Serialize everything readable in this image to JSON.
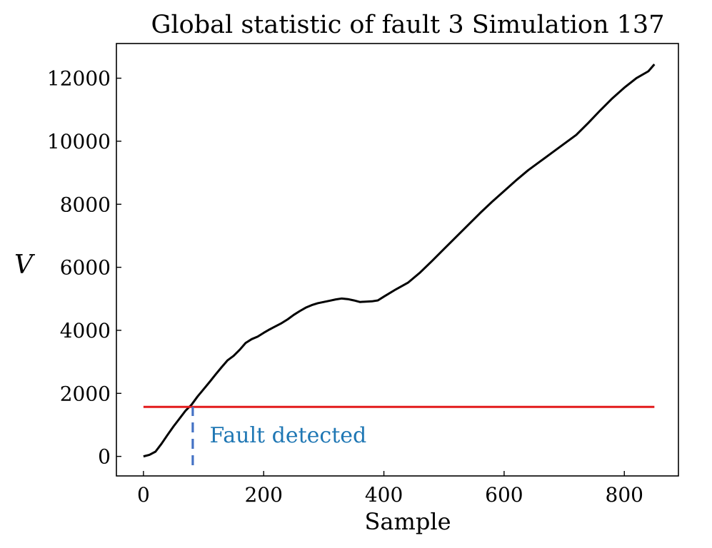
{
  "chart_data": {
    "type": "line",
    "title": "Global statistic of fault 3 Simulation 137",
    "xlabel": "Sample",
    "ylabel": "V",
    "xlim": [
      -45,
      890
    ],
    "ylim": [
      -620,
      13100
    ],
    "xticks": [
      0,
      200,
      400,
      600,
      800
    ],
    "yticks": [
      0,
      2000,
      4000,
      6000,
      8000,
      10000,
      12000
    ],
    "grid": false,
    "series": [
      {
        "color": "#000000",
        "x": [
          0,
          10,
          20,
          30,
          40,
          50,
          60,
          70,
          80,
          90,
          100,
          110,
          120,
          130,
          140,
          150,
          160,
          170,
          180,
          190,
          200,
          210,
          220,
          230,
          240,
          250,
          260,
          270,
          280,
          290,
          300,
          310,
          320,
          330,
          340,
          350,
          360,
          370,
          380,
          390,
          400,
          420,
          440,
          460,
          480,
          500,
          520,
          540,
          560,
          580,
          600,
          620,
          640,
          660,
          680,
          700,
          720,
          740,
          760,
          780,
          800,
          820,
          840,
          850
        ],
        "y": [
          0,
          50,
          150,
          400,
          680,
          950,
          1200,
          1450,
          1640,
          1900,
          2130,
          2360,
          2600,
          2830,
          3050,
          3190,
          3380,
          3600,
          3720,
          3800,
          3920,
          4030,
          4130,
          4230,
          4350,
          4490,
          4610,
          4720,
          4800,
          4860,
          4900,
          4940,
          4980,
          5010,
          4990,
          4950,
          4900,
          4910,
          4920,
          4950,
          5070,
          5300,
          5510,
          5830,
          6200,
          6580,
          6960,
          7340,
          7720,
          8080,
          8420,
          8760,
          9080,
          9360,
          9640,
          9920,
          10200,
          10580,
          10980,
          11360,
          11700,
          12000,
          12220,
          12440
        ]
      },
      {
        "color": "#e31a1c",
        "x": [
          0,
          850
        ],
        "y": [
          1570,
          1570
        ]
      }
    ],
    "annotations": [
      {
        "text": "Fault detected",
        "x": 110,
        "y": 440,
        "color": "#1f77b4"
      }
    ],
    "detection_marker": {
      "x": 82,
      "y_from": -280,
      "y_to": 1570,
      "color": "#4472c4",
      "style": "dashed"
    }
  }
}
